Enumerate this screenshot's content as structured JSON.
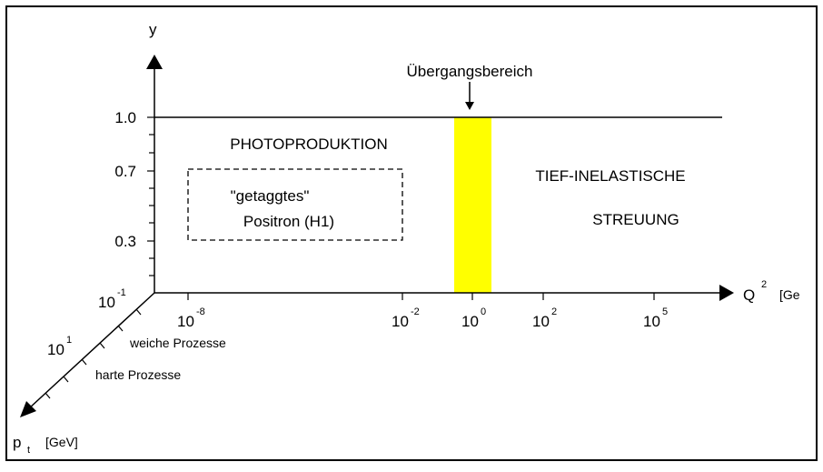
{
  "axes": {
    "y": {
      "label": "y",
      "ticks": [
        "1.0",
        "0.7",
        "0.3"
      ]
    },
    "q2": {
      "label": "Q",
      "exp": "2",
      "unit": "[Ge",
      "ticks": [
        {
          "base": "10",
          "exp": "-8"
        },
        {
          "base": "10",
          "exp": "-2"
        },
        {
          "base": "10",
          "exp": "0"
        },
        {
          "base": "10",
          "exp": "2"
        },
        {
          "base": "10",
          "exp": "5"
        }
      ]
    },
    "pt": {
      "label": "p",
      "sub": "t",
      "unit": "[GeV]",
      "ticks": [
        {
          "base": "10",
          "exp": "-1"
        },
        {
          "base": "10",
          "exp": "1"
        }
      ]
    }
  },
  "regions": {
    "transition": "Übergangsbereich",
    "photoproduction": "PHOTOPRODUKTION",
    "tagged": [
      "\"getaggtes\"",
      "Positron (H1)"
    ],
    "dis": [
      "TIEF-INELASTISCHE",
      "STREUUNG"
    ],
    "soft": "weiche Prozesse",
    "hard": "harte Prozesse"
  }
}
